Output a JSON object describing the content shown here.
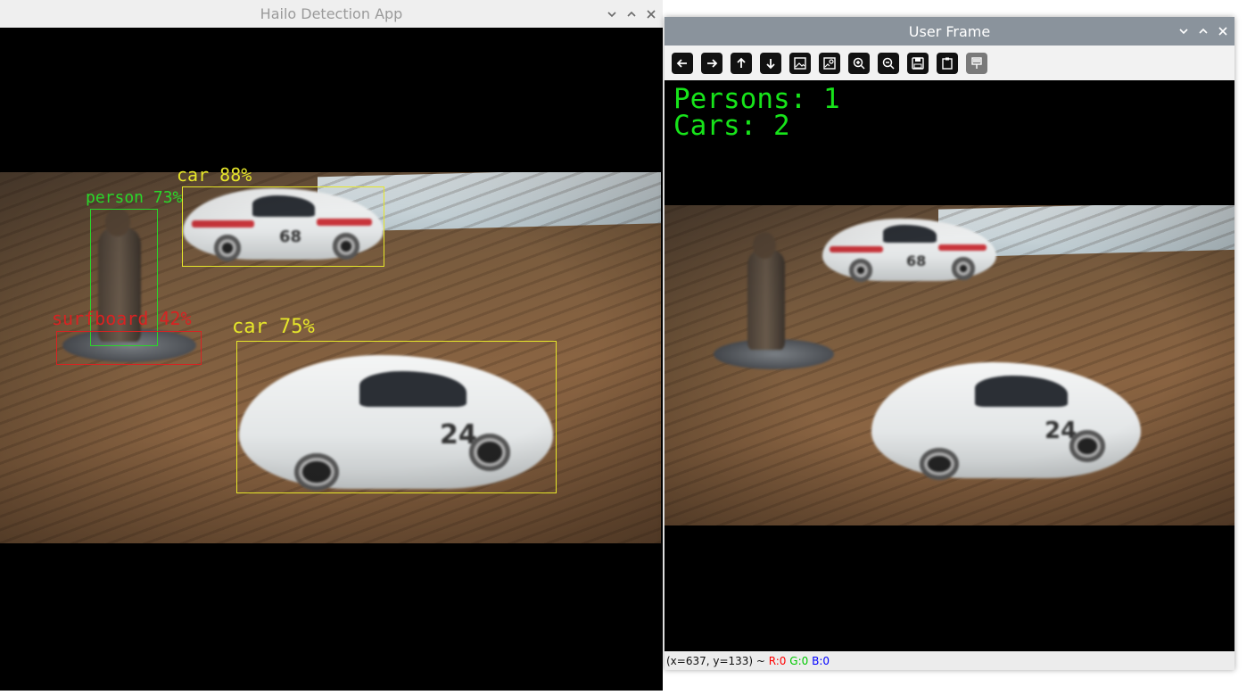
{
  "windows": {
    "hailo": {
      "title": "Hailo Detection App",
      "detections": [
        {
          "label": "car 88%",
          "color": "#e6e62a"
        },
        {
          "label": "person 73%",
          "color": "#2ad62a"
        },
        {
          "label": "surfboard 42%",
          "color": "#d82222"
        },
        {
          "label": "car 75%",
          "color": "#e6e62a"
        }
      ]
    },
    "user_frame": {
      "title": "User Frame",
      "toolbar": {
        "icons": [
          "arrow-left-icon",
          "arrow-right-icon",
          "arrow-up-icon",
          "arrow-down-icon",
          "image-icon",
          "image-settings-icon",
          "zoom-in-icon",
          "zoom-out-icon",
          "save-icon",
          "clipboard-icon",
          "properties-icon"
        ]
      },
      "overlay": {
        "persons": "Persons: 1",
        "cars": "Cars: 2",
        "text_color": "#17e41a"
      },
      "status": {
        "coords": "(x=637, y=133) ~ ",
        "r": "R:0",
        "g": "G:0",
        "b": "B:0",
        "r_color": "#ff0000",
        "g_color": "#00c800",
        "b_color": "#0000ff"
      }
    }
  },
  "window_controls": [
    "chevron-down-icon",
    "chevron-up-icon",
    "close-icon"
  ]
}
